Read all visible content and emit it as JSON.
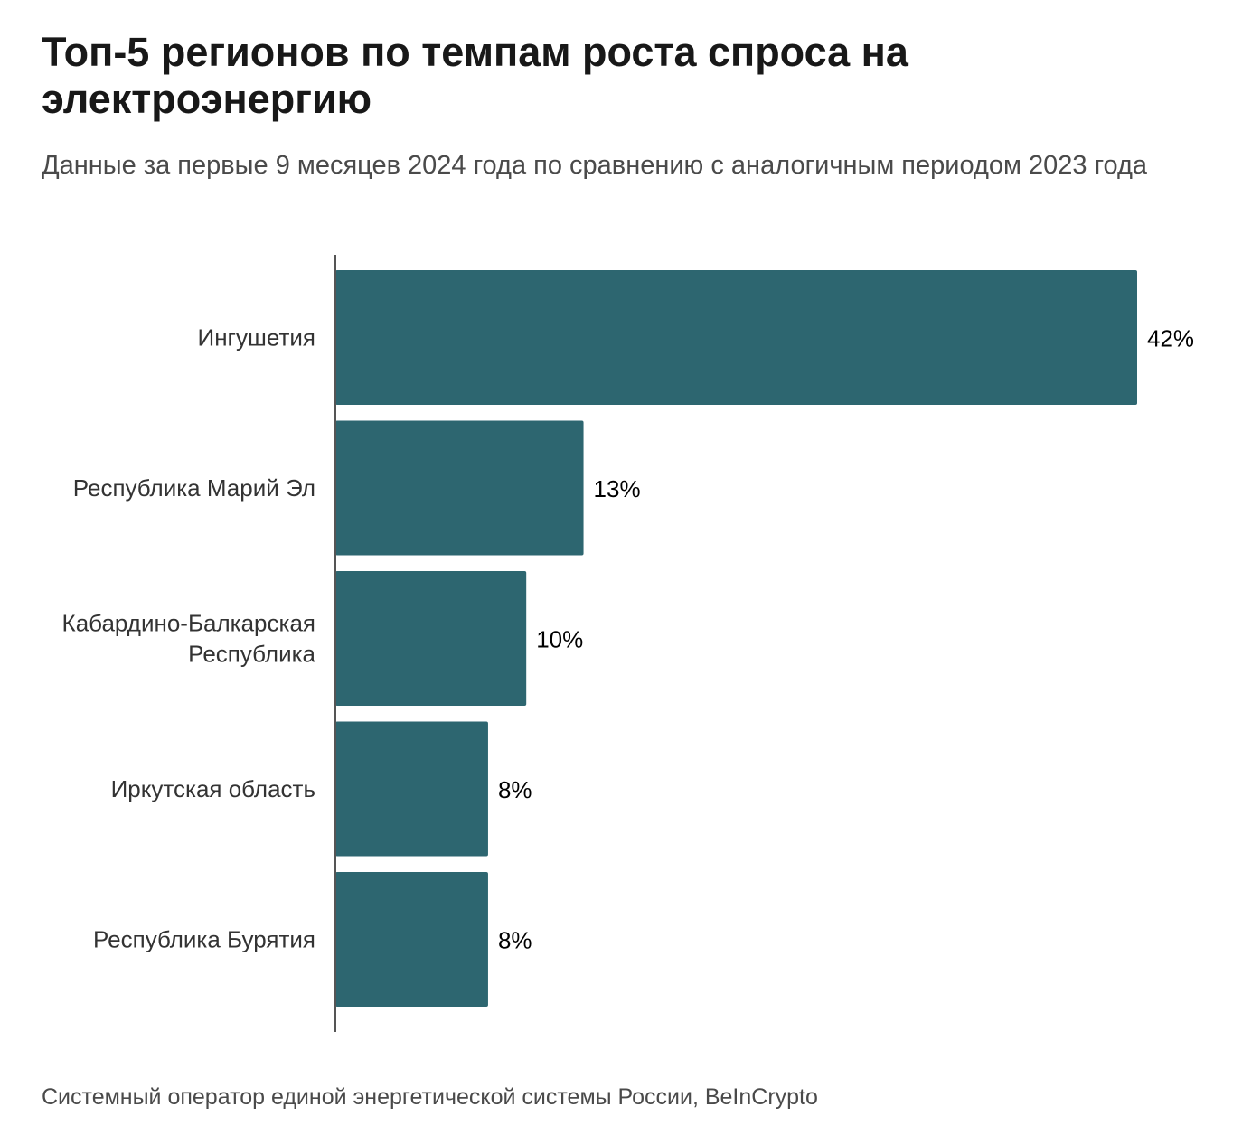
{
  "title": "Топ-5 регионов по темпам роста спроса на электроэнергию",
  "subtitle": "Данные за первые 9 месяцев 2024 года по сравнению с аналогичным периодом 2023 года",
  "source": "Системный оператор единой энергетической системы России, BeInCrypto",
  "colors": {
    "bar": "#2d6670",
    "axis": "#555555",
    "label": "#333333",
    "value": "#000000"
  },
  "chart_data": {
    "type": "bar",
    "orientation": "horizontal",
    "categories": [
      [
        "Ингушетия"
      ],
      [
        "Республика Марий Эл"
      ],
      [
        "Кабардино-Балкарская",
        "Республика"
      ],
      [
        "Иркутская область"
      ],
      [
        "Республика Бурятия"
      ]
    ],
    "values": [
      42,
      13,
      10,
      8,
      8
    ],
    "value_labels": [
      "42%",
      "13%",
      "10%",
      "8%",
      "8%"
    ],
    "unit": "%",
    "xlim": [
      0,
      42
    ],
    "xlabel": "",
    "ylabel": "",
    "grid": false,
    "legend": "none"
  }
}
